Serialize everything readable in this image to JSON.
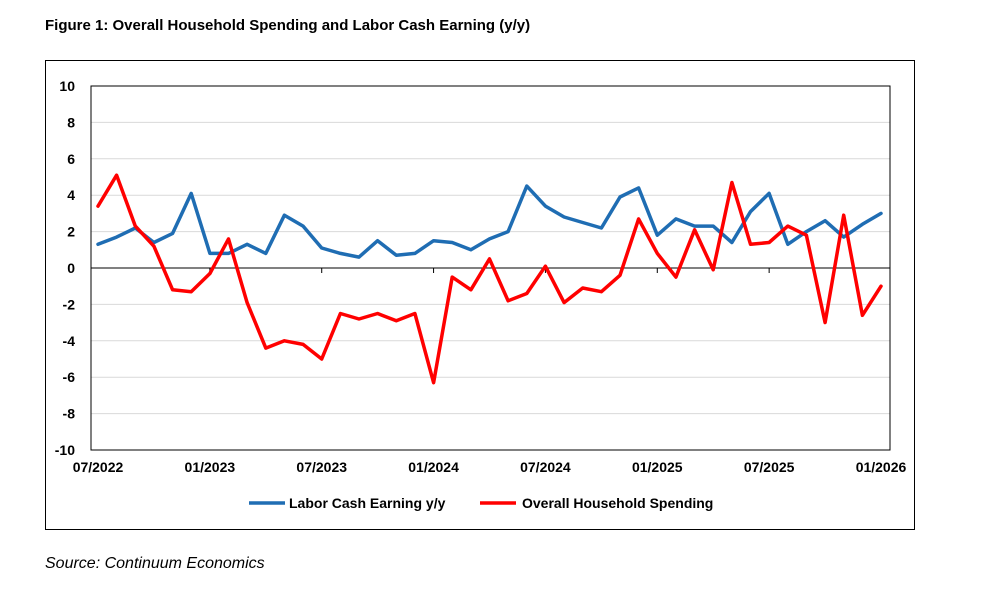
{
  "figure_title": "Figure 1: Overall Household Spending and Labor Cash Earning (y/y)",
  "source": "Source: Continuum Economics",
  "chart_data": {
    "type": "line",
    "title": "Figure 1: Overall Household Spending and Labor Cash Earning (y/y)",
    "xlabel": "",
    "ylabel": "",
    "ylim": [
      -10,
      10
    ],
    "yticks": [
      -10,
      -8,
      -6,
      -4,
      -2,
      0,
      2,
      4,
      6,
      8,
      10
    ],
    "xlim": [
      "07/2022",
      "01/2026"
    ],
    "x_tick_labels": [
      "07/2022",
      "01/2023",
      "07/2023",
      "01/2024",
      "07/2024",
      "01/2025",
      "07/2025",
      "01/2026"
    ],
    "x_tick_month_index": [
      0,
      6,
      12,
      18,
      24,
      30,
      36,
      42
    ],
    "grid": true,
    "legend_position": "bottom",
    "x": [
      "07/2022",
      "08/2022",
      "09/2022",
      "10/2022",
      "11/2022",
      "12/2022",
      "01/2023",
      "02/2023",
      "03/2023",
      "04/2023",
      "05/2023",
      "06/2023",
      "07/2023",
      "08/2023",
      "09/2023",
      "10/2023",
      "11/2023",
      "12/2023",
      "01/2024",
      "02/2024",
      "03/2024",
      "04/2024",
      "05/2024",
      "06/2024",
      "07/2024",
      "08/2024",
      "09/2024",
      "10/2024",
      "11/2024",
      "12/2024",
      "01/2025",
      "02/2025",
      "03/2025",
      "04/2025",
      "05/2025",
      "06/2025",
      "07/2025",
      "08/2025",
      "09/2025",
      "10/2025",
      "11/2025",
      "12/2025",
      "01/2026"
    ],
    "series": [
      {
        "name": "Labor Cash Earning y/y",
        "color": "#1f6db3",
        "values": [
          1.3,
          1.7,
          2.2,
          1.4,
          1.9,
          4.1,
          0.8,
          0.8,
          1.3,
          0.8,
          2.9,
          2.3,
          1.1,
          0.8,
          0.6,
          1.5,
          0.7,
          0.8,
          1.5,
          1.4,
          1.0,
          1.6,
          2.0,
          4.5,
          3.4,
          2.8,
          2.5,
          2.2,
          3.9,
          4.4,
          1.8,
          2.7,
          2.3,
          2.3,
          1.4,
          3.1,
          4.1,
          1.3,
          2.0,
          2.6,
          1.7,
          2.4,
          3.0
        ]
      },
      {
        "name": "Overall Household Spending",
        "color": "#ff0000",
        "values": [
          3.4,
          5.1,
          2.3,
          1.2,
          -1.2,
          -1.3,
          -0.3,
          1.6,
          -1.9,
          -4.4,
          -4.0,
          -4.2,
          -5.0,
          -2.5,
          -2.8,
          -2.5,
          -2.9,
          -2.5,
          -6.3,
          -0.5,
          -1.2,
          0.5,
          -1.8,
          -1.4,
          0.1,
          -1.9,
          -1.1,
          -1.3,
          -0.4,
          2.7,
          0.8,
          -0.5,
          2.1,
          -0.1,
          4.7,
          1.3,
          1.4,
          2.3,
          1.8,
          -3.0,
          2.9,
          -2.6,
          -1.0
        ]
      }
    ]
  }
}
